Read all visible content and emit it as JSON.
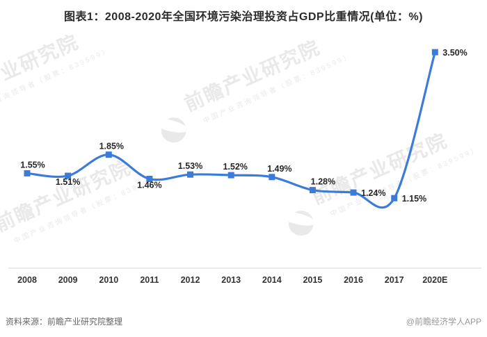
{
  "page": {
    "title": "图表1：2008-2020年全国环境污染治理投资占GDP比重情况(单位：%)"
  },
  "chart_data": {
    "type": "line",
    "title": "图表1：2008-2020年全国环境污染治理投资占GDP比重情况(单位：%)",
    "categories": [
      "2008",
      "2009",
      "2010",
      "2011",
      "2012",
      "2013",
      "2014",
      "2015",
      "2016",
      "2017",
      "2020E"
    ],
    "values": [
      1.55,
      1.51,
      1.85,
      1.46,
      1.53,
      1.52,
      1.49,
      1.28,
      1.24,
      1.15,
      3.5
    ],
    "point_labels": [
      "1.55%",
      "1.51%",
      "1.85%",
      "1.46%",
      "1.53%",
      "1.52%",
      "1.49%",
      "1.28%",
      "1.24%",
      "1.15%",
      "3.50%"
    ],
    "label_placements": [
      "above",
      "below",
      "above",
      "below",
      "above",
      "above",
      "above",
      "above",
      "right",
      "right",
      "right"
    ],
    "label_dx": [
      8,
      0,
      4,
      0,
      0,
      6,
      11,
      15,
      0,
      0,
      0
    ],
    "xlabel": "",
    "ylabel": "",
    "unit": "%",
    "ylim": [
      0,
      3.9
    ],
    "grid": false,
    "legend": "none",
    "smooth": true,
    "marker": "square",
    "line_color": "#3b7cdb",
    "label_color": "#262626",
    "tick_color": "#333333",
    "axis_color": "#d9d9d9"
  },
  "footer": {
    "source": "资料来源：前瞻产业研究院整理",
    "credit": "@前瞻经济学人APP"
  },
  "watermark": {
    "brand": "前瞻产业研究院",
    "tagline": "中国产业咨询领导者（股票：839599）"
  }
}
